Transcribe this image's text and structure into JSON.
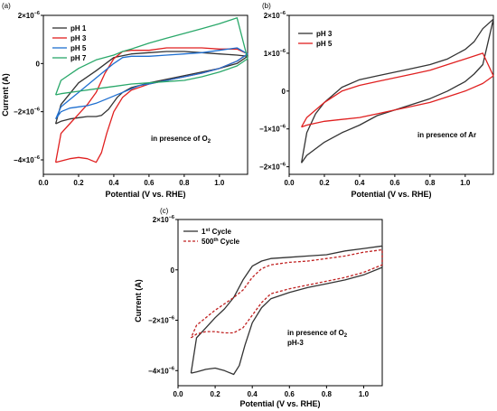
{
  "chart_data": [
    {
      "type": "line",
      "panel_label": "(a)",
      "xlabel": "Potential (V vs. RHE)",
      "ylabel": "Current (A)",
      "xlim": [
        0,
        1.16
      ],
      "ylim": [
        -4.6e-06,
        2e-06
      ],
      "xticks": [
        "0.0",
        "0.2",
        "0.4",
        "0.6",
        "0.8",
        "1.0"
      ],
      "xtick_values": [
        0,
        0.2,
        0.4,
        0.6,
        0.8,
        1.0
      ],
      "yticks": [
        {
          "value": 2e-06,
          "base": "2×10",
          "exp": "−6"
        },
        {
          "value": 0,
          "base": "0",
          "exp": ""
        },
        {
          "value": -2e-06,
          "base": "−2×10",
          "exp": "−6"
        },
        {
          "value": -4e-06,
          "base": "−4×10",
          "exp": "−6"
        }
      ],
      "legend_position": "top-left",
      "annotation": {
        "text": "in presence of O",
        "sub": "2"
      },
      "series": [
        {
          "name": "pH 1",
          "color": "#333333",
          "x": [
            0.07,
            0.1,
            0.15,
            0.2,
            0.25,
            0.3,
            0.33,
            0.37,
            0.42,
            0.45,
            0.5,
            0.6,
            0.7,
            0.8,
            0.9,
            1.0,
            1.1,
            1.16,
            1.1,
            1.0,
            0.9,
            0.8,
            0.7,
            0.6,
            0.5,
            0.4,
            0.3,
            0.2,
            0.1,
            0.07
          ],
          "y": [
            -2.5e-06,
            -2.4e-06,
            -2.3e-06,
            -2.25e-06,
            -2.2e-06,
            -2.2e-06,
            -2.15e-06,
            -1.9e-06,
            -1.4e-06,
            -1.2e-06,
            -1e-06,
            -8e-07,
            -6.5e-07,
            -5e-07,
            -3.5e-07,
            -2e-07,
            0.0,
            3e-07,
            3.5e-07,
            4e-07,
            4.5e-07,
            5e-07,
            5e-07,
            4.5e-07,
            4e-07,
            2.5e-07,
            -3e-07,
            -8e-07,
            -1.7e-06,
            -2.5e-06
          ]
        },
        {
          "name": "pH 3",
          "color": "#e02020",
          "x": [
            0.07,
            0.1,
            0.15,
            0.2,
            0.25,
            0.3,
            0.33,
            0.36,
            0.4,
            0.45,
            0.5,
            0.6,
            0.7,
            0.8,
            0.9,
            1.0,
            1.1,
            1.16,
            1.1,
            1.0,
            0.9,
            0.8,
            0.7,
            0.6,
            0.5,
            0.45,
            0.4,
            0.35,
            0.3,
            0.25,
            0.2,
            0.15,
            0.1,
            0.07
          ],
          "y": [
            -4.1e-06,
            -4.05e-06,
            -3.95e-06,
            -3.9e-06,
            -3.95e-06,
            -4.1e-06,
            -3.7e-06,
            -2.9e-06,
            -2e-06,
            -1.4e-06,
            -1.1e-06,
            -8.5e-07,
            -7e-07,
            -5.5e-07,
            -4e-07,
            -2e-07,
            1e-07,
            4e-07,
            6e-07,
            6e-07,
            6.5e-07,
            6.5e-07,
            6.5e-07,
            5.5e-07,
            5.5e-07,
            5e-07,
            2e-07,
            -4e-07,
            -1.2e-06,
            -1.7e-06,
            -2.1e-06,
            -2.5e-06,
            -2.9e-06,
            -4.1e-06
          ]
        },
        {
          "name": "pH 5",
          "color": "#1f6fd0",
          "x": [
            0.07,
            0.1,
            0.15,
            0.2,
            0.25,
            0.3,
            0.35,
            0.4,
            0.45,
            0.5,
            0.55,
            0.6,
            0.7,
            0.8,
            0.9,
            1.0,
            1.1,
            1.16,
            1.1,
            1.0,
            0.9,
            0.8,
            0.7,
            0.6,
            0.5,
            0.45,
            0.4,
            0.3,
            0.2,
            0.1,
            0.07
          ],
          "y": [
            -2.3e-06,
            -2e-06,
            -1.85e-06,
            -1.8e-06,
            -1.75e-06,
            -1.65e-06,
            -1.5e-06,
            -1.35e-06,
            -1.2e-06,
            -1.05e-06,
            -9e-07,
            -8.5e-07,
            -7e-07,
            -5.5e-07,
            -4e-07,
            -2e-07,
            1e-07,
            4e-07,
            6.5e-07,
            5.5e-07,
            4.5e-07,
            4e-07,
            3.5e-07,
            3e-07,
            3e-07,
            2.5e-07,
            0.0,
            -6e-07,
            -1.2e-06,
            -1.8e-06,
            -2.3e-06
          ]
        },
        {
          "name": "pH 7",
          "color": "#2aa86a",
          "x": [
            0.07,
            0.1,
            0.2,
            0.3,
            0.4,
            0.5,
            0.6,
            0.7,
            0.8,
            0.9,
            1.0,
            1.1,
            1.16,
            1.1,
            1.0,
            0.9,
            0.8,
            0.7,
            0.6,
            0.5,
            0.45,
            0.4,
            0.3,
            0.2,
            0.1,
            0.07
          ],
          "y": [
            -1.3e-06,
            -1.25e-06,
            -1.15e-06,
            -1.05e-06,
            -9.5e-07,
            -8.5e-07,
            -8e-07,
            -7.5e-07,
            -7e-07,
            -5.5e-07,
            -3.5e-07,
            -1e-07,
            2e-07,
            1.9e-06,
            1.65e-06,
            1.45e-06,
            1.25e-06,
            1.05e-06,
            8.5e-07,
            6e-07,
            5e-07,
            3.5e-07,
            1.5e-07,
            -2e-07,
            -7e-07,
            -1.3e-06
          ]
        }
      ]
    },
    {
      "type": "line",
      "panel_label": "(b)",
      "xlabel": "Potential (V vs. RHE)",
      "ylabel": "",
      "xlim": [
        0,
        1.16
      ],
      "ylim": [
        -2.2e-06,
        2e-06
      ],
      "xticks": [
        "0.0",
        "0.2",
        "0.4",
        "0.6",
        "0.8",
        "1.0"
      ],
      "xtick_values": [
        0,
        0.2,
        0.4,
        0.6,
        0.8,
        1.0
      ],
      "yticks": [
        {
          "value": 2e-06,
          "base": "2×10",
          "exp": "−6"
        },
        {
          "value": 1e-06,
          "base": "1×10",
          "exp": "−6"
        },
        {
          "value": 0,
          "base": "0",
          "exp": ""
        },
        {
          "value": -1e-06,
          "base": "−1×10",
          "exp": "−6"
        },
        {
          "value": -2e-06,
          "base": "−2×10",
          "exp": "−6"
        }
      ],
      "legend_position": "top-left",
      "annotation": {
        "text": "in presence of Ar",
        "sub": ""
      },
      "series": [
        {
          "name": "pH 3",
          "color": "#333333",
          "x": [
            0.07,
            0.1,
            0.2,
            0.3,
            0.4,
            0.5,
            0.6,
            0.7,
            0.8,
            0.9,
            1.0,
            1.05,
            1.1,
            1.16,
            1.1,
            1.05,
            1.0,
            0.9,
            0.8,
            0.7,
            0.6,
            0.5,
            0.4,
            0.3,
            0.2,
            0.15,
            0.1,
            0.07
          ],
          "y": [
            -1.9e-06,
            -1.7e-06,
            -1.35e-06,
            -1.1e-06,
            -9e-07,
            -6.5e-07,
            -5e-07,
            -3.5e-07,
            -2e-07,
            0.0,
            2.5e-07,
            4.5e-07,
            7e-07,
            1.9e-06,
            1.65e-06,
            1.3e-06,
            1.1e-06,
            8.5e-07,
            7e-07,
            6e-07,
            5e-07,
            4e-07,
            3e-07,
            1e-07,
            -3e-07,
            -6e-07,
            -1.1e-06,
            -1.9e-06
          ]
        },
        {
          "name": "pH 5",
          "color": "#e02020",
          "x": [
            0.07,
            0.1,
            0.2,
            0.3,
            0.4,
            0.5,
            0.6,
            0.7,
            0.8,
            0.9,
            1.0,
            1.1,
            1.16,
            1.1,
            1.0,
            0.9,
            0.8,
            0.7,
            0.6,
            0.5,
            0.4,
            0.3,
            0.2,
            0.1,
            0.07
          ],
          "y": [
            -9.5e-07,
            -9e-07,
            -8e-07,
            -7.5e-07,
            -7e-07,
            -6e-07,
            -5e-07,
            -4e-07,
            -3e-07,
            -1.5e-07,
            0.0,
            2e-07,
            4e-07,
            1e-06,
            8.5e-07,
            7e-07,
            5.5e-07,
            4.5e-07,
            3.5e-07,
            2.5e-07,
            1.5e-07,
            0.0,
            -3e-07,
            -7e-07,
            -9.5e-07
          ]
        }
      ]
    },
    {
      "type": "line",
      "panel_label": "(c)",
      "xlabel": "Potential (V vs. RHE)",
      "ylabel": "Current (A)",
      "xlim": [
        0,
        1.1
      ],
      "ylim": [
        -4.6e-06,
        2e-06
      ],
      "xticks": [
        "0.0",
        "0.2",
        "0.4",
        "0.6",
        "0.8",
        "1.0"
      ],
      "xtick_values": [
        0,
        0.2,
        0.4,
        0.6,
        0.8,
        1.0
      ],
      "yticks": [
        {
          "value": 2e-06,
          "base": "2×10",
          "exp": "−6"
        },
        {
          "value": 0,
          "base": "0",
          "exp": ""
        },
        {
          "value": -2e-06,
          "base": "−2×10",
          "exp": "−6"
        },
        {
          "value": -4e-06,
          "base": "−4×10",
          "exp": "−6"
        }
      ],
      "legend_position": "top-left",
      "legend_entries": [
        {
          "base": "1",
          "sup": "st",
          "rest": " Cycle"
        },
        {
          "base": "500",
          "sup": "th",
          "rest": " Cycle"
        }
      ],
      "annotation": {
        "text": "in presence of O",
        "sub": "2",
        "line2": "pH-3"
      },
      "series": [
        {
          "color": "#333333",
          "dash": "",
          "x": [
            0.07,
            0.1,
            0.15,
            0.2,
            0.25,
            0.3,
            0.33,
            0.36,
            0.4,
            0.45,
            0.5,
            0.6,
            0.7,
            0.8,
            0.9,
            1.0,
            1.1,
            1.1,
            1.0,
            0.9,
            0.8,
            0.7,
            0.6,
            0.5,
            0.45,
            0.4,
            0.35,
            0.3,
            0.25,
            0.2,
            0.15,
            0.1,
            0.07
          ],
          "y": [
            -4.1e-06,
            -4.05e-06,
            -3.95e-06,
            -3.9e-06,
            -4e-06,
            -4.15e-06,
            -3.8e-06,
            -3e-06,
            -2.1e-06,
            -1.5e-06,
            -1.15e-06,
            -9e-07,
            -7e-07,
            -5.5e-07,
            -4e-07,
            -2e-07,
            1e-07,
            9.5e-07,
            8.5e-07,
            7.5e-07,
            6e-07,
            5.5e-07,
            5e-07,
            4.5e-07,
            3.5e-07,
            1.5e-07,
            -4e-07,
            -1.1e-06,
            -1.55e-06,
            -1.9e-06,
            -2.3e-06,
            -2.7e-06,
            -4.1e-06
          ]
        },
        {
          "color": "#c02020",
          "dash": "3,2",
          "x": [
            0.07,
            0.1,
            0.15,
            0.2,
            0.25,
            0.3,
            0.35,
            0.4,
            0.45,
            0.5,
            0.6,
            0.7,
            0.8,
            0.9,
            1.0,
            1.1,
            1.1,
            1.0,
            0.9,
            0.8,
            0.7,
            0.6,
            0.5,
            0.45,
            0.4,
            0.35,
            0.3,
            0.25,
            0.2,
            0.15,
            0.1,
            0.07
          ],
          "y": [
            -2.7e-06,
            -2.55e-06,
            -2.45e-06,
            -2.45e-06,
            -2.5e-06,
            -2.5e-06,
            -2.3e-06,
            -1.8e-06,
            -1.3e-06,
            -9.5e-07,
            -7.5e-07,
            -6e-07,
            -4.5e-07,
            -3e-07,
            -1e-07,
            2e-07,
            8e-07,
            7e-07,
            5.5e-07,
            4.5e-07,
            3.5e-07,
            3e-07,
            2e-07,
            5e-08,
            -3e-07,
            -8e-07,
            -1.1e-06,
            -1.35e-06,
            -1.6e-06,
            -1.9e-06,
            -2.2e-06,
            -2.7e-06
          ]
        }
      ]
    }
  ]
}
